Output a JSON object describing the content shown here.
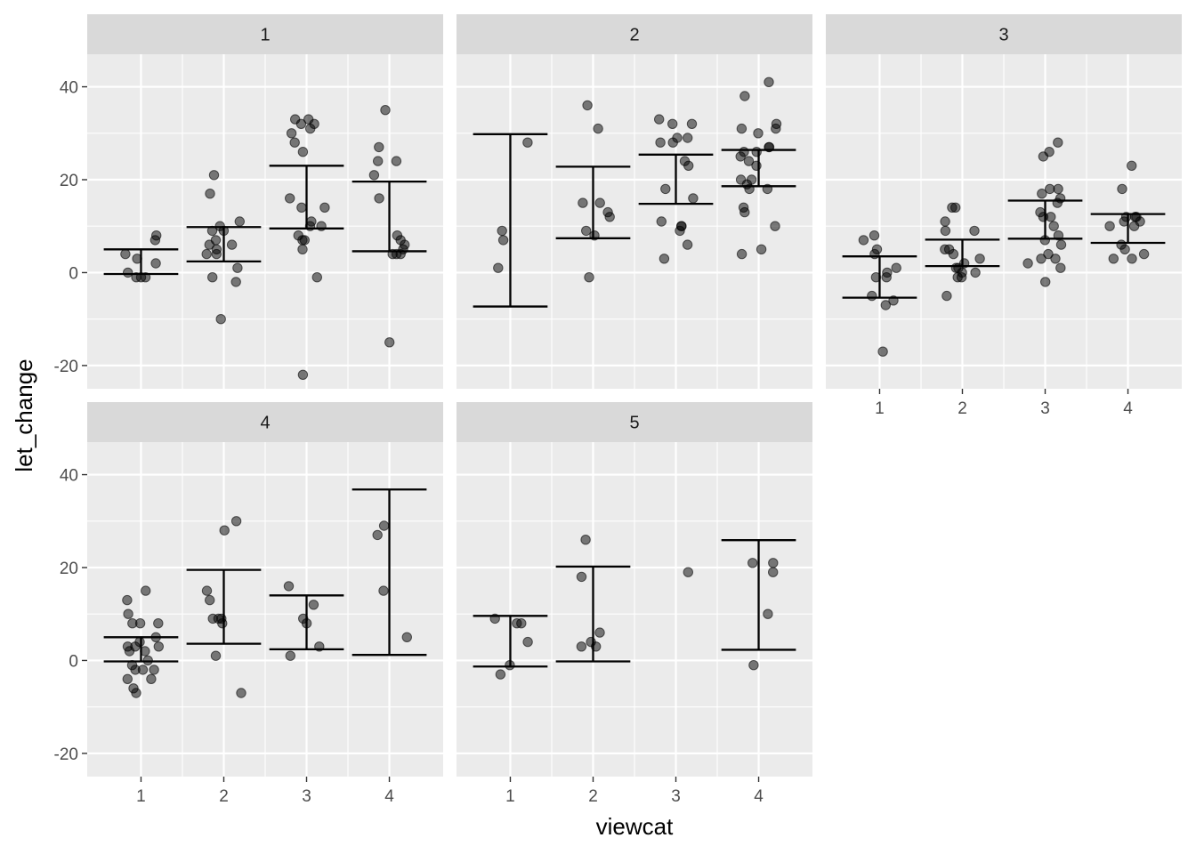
{
  "chart_data": {
    "type": "scatter",
    "xlabel": "viewcat",
    "ylabel": "let_change",
    "categories": [
      "1",
      "2",
      "3",
      "4"
    ],
    "ylim": [
      -25,
      47
    ],
    "yticks": [
      -20,
      0,
      20,
      40
    ],
    "grid": true,
    "facets": [
      {
        "label": "1",
        "points": [
          {
            "x": 1,
            "y": 7
          },
          {
            "x": 1,
            "y": 8
          },
          {
            "x": 1,
            "y": 4
          },
          {
            "x": 1,
            "y": 3
          },
          {
            "x": 1,
            "y": 2
          },
          {
            "x": 1,
            "y": 0
          },
          {
            "x": 1,
            "y": -1
          },
          {
            "x": 1,
            "y": -1
          },
          {
            "x": 1,
            "y": -1
          },
          {
            "x": 2,
            "y": 21
          },
          {
            "x": 2,
            "y": 17
          },
          {
            "x": 2,
            "y": 11
          },
          {
            "x": 2,
            "y": 10
          },
          {
            "x": 2,
            "y": 9
          },
          {
            "x": 2,
            "y": 9
          },
          {
            "x": 2,
            "y": 7
          },
          {
            "x": 2,
            "y": 6
          },
          {
            "x": 2,
            "y": 6
          },
          {
            "x": 2,
            "y": 5
          },
          {
            "x": 2,
            "y": 4
          },
          {
            "x": 2,
            "y": 4
          },
          {
            "x": 2,
            "y": 1
          },
          {
            "x": 2,
            "y": -1
          },
          {
            "x": 2,
            "y": -2
          },
          {
            "x": 2,
            "y": -10
          },
          {
            "x": 3,
            "y": 33
          },
          {
            "x": 3,
            "y": 33
          },
          {
            "x": 3,
            "y": 32
          },
          {
            "x": 3,
            "y": 32
          },
          {
            "x": 3,
            "y": 31
          },
          {
            "x": 3,
            "y": 30
          },
          {
            "x": 3,
            "y": 28
          },
          {
            "x": 3,
            "y": 26
          },
          {
            "x": 3,
            "y": 16
          },
          {
            "x": 3,
            "y": 14
          },
          {
            "x": 3,
            "y": 14
          },
          {
            "x": 3,
            "y": 11
          },
          {
            "x": 3,
            "y": 10
          },
          {
            "x": 3,
            "y": 10
          },
          {
            "x": 3,
            "y": 8
          },
          {
            "x": 3,
            "y": 7
          },
          {
            "x": 3,
            "y": 7
          },
          {
            "x": 3,
            "y": 5
          },
          {
            "x": 3,
            "y": -1
          },
          {
            "x": 3,
            "y": -22
          },
          {
            "x": 4,
            "y": 35
          },
          {
            "x": 4,
            "y": 27
          },
          {
            "x": 4,
            "y": 24
          },
          {
            "x": 4,
            "y": 24
          },
          {
            "x": 4,
            "y": 21
          },
          {
            "x": 4,
            "y": 16
          },
          {
            "x": 4,
            "y": 8
          },
          {
            "x": 4,
            "y": 7
          },
          {
            "x": 4,
            "y": 6
          },
          {
            "x": 4,
            "y": 5
          },
          {
            "x": 4,
            "y": 4
          },
          {
            "x": 4,
            "y": 4
          },
          {
            "x": 4,
            "y": 4
          },
          {
            "x": 4,
            "y": -15
          }
        ],
        "errorbars": [
          {
            "x": 1,
            "ymin": -0.3,
            "ymax": 5.0
          },
          {
            "x": 2,
            "ymin": 2.4,
            "ymax": 9.8
          },
          {
            "x": 3,
            "ymin": 9.5,
            "ymax": 23.0
          },
          {
            "x": 4,
            "ymin": 4.6,
            "ymax": 19.6
          }
        ]
      },
      {
        "label": "2",
        "points": [
          {
            "x": 1,
            "y": 28
          },
          {
            "x": 1,
            "y": 9
          },
          {
            "x": 1,
            "y": 7
          },
          {
            "x": 1,
            "y": 1
          },
          {
            "x": 2,
            "y": 36
          },
          {
            "x": 2,
            "y": 31
          },
          {
            "x": 2,
            "y": 15
          },
          {
            "x": 2,
            "y": 15
          },
          {
            "x": 2,
            "y": 13
          },
          {
            "x": 2,
            "y": 12
          },
          {
            "x": 2,
            "y": 9
          },
          {
            "x": 2,
            "y": 8
          },
          {
            "x": 2,
            "y": -1
          },
          {
            "x": 3,
            "y": 33
          },
          {
            "x": 3,
            "y": 32
          },
          {
            "x": 3,
            "y": 32
          },
          {
            "x": 3,
            "y": 29
          },
          {
            "x": 3,
            "y": 29
          },
          {
            "x": 3,
            "y": 28
          },
          {
            "x": 3,
            "y": 28
          },
          {
            "x": 3,
            "y": 24
          },
          {
            "x": 3,
            "y": 23
          },
          {
            "x": 3,
            "y": 18
          },
          {
            "x": 3,
            "y": 16
          },
          {
            "x": 3,
            "y": 11
          },
          {
            "x": 3,
            "y": 10
          },
          {
            "x": 3,
            "y": 10
          },
          {
            "x": 3,
            "y": 9
          },
          {
            "x": 3,
            "y": 6
          },
          {
            "x": 3,
            "y": 3
          },
          {
            "x": 4,
            "y": 41
          },
          {
            "x": 4,
            "y": 38
          },
          {
            "x": 4,
            "y": 32
          },
          {
            "x": 4,
            "y": 31
          },
          {
            "x": 4,
            "y": 31
          },
          {
            "x": 4,
            "y": 30
          },
          {
            "x": 4,
            "y": 27
          },
          {
            "x": 4,
            "y": 27
          },
          {
            "x": 4,
            "y": 26
          },
          {
            "x": 4,
            "y": 26
          },
          {
            "x": 4,
            "y": 25
          },
          {
            "x": 4,
            "y": 24
          },
          {
            "x": 4,
            "y": 23
          },
          {
            "x": 4,
            "y": 20
          },
          {
            "x": 4,
            "y": 20
          },
          {
            "x": 4,
            "y": 19
          },
          {
            "x": 4,
            "y": 18
          },
          {
            "x": 4,
            "y": 18
          },
          {
            "x": 4,
            "y": 14
          },
          {
            "x": 4,
            "y": 13
          },
          {
            "x": 4,
            "y": 10
          },
          {
            "x": 4,
            "y": 5
          },
          {
            "x": 4,
            "y": 4
          }
        ],
        "errorbars": [
          {
            "x": 1,
            "ymin": -7.3,
            "ymax": 29.8
          },
          {
            "x": 2,
            "ymin": 7.4,
            "ymax": 22.8
          },
          {
            "x": 3,
            "ymin": 14.8,
            "ymax": 25.4
          },
          {
            "x": 4,
            "ymin": 18.6,
            "ymax": 26.4
          }
        ]
      },
      {
        "label": "3",
        "points": [
          {
            "x": 1,
            "y": 8
          },
          {
            "x": 1,
            "y": 7
          },
          {
            "x": 1,
            "y": 5
          },
          {
            "x": 1,
            "y": 4
          },
          {
            "x": 1,
            "y": 1
          },
          {
            "x": 1,
            "y": 0
          },
          {
            "x": 1,
            "y": -1
          },
          {
            "x": 1,
            "y": -1
          },
          {
            "x": 1,
            "y": -5
          },
          {
            "x": 1,
            "y": -6
          },
          {
            "x": 1,
            "y": -7
          },
          {
            "x": 1,
            "y": -17
          },
          {
            "x": 2,
            "y": 14
          },
          {
            "x": 2,
            "y": 14
          },
          {
            "x": 2,
            "y": 11
          },
          {
            "x": 2,
            "y": 9
          },
          {
            "x": 2,
            "y": 9
          },
          {
            "x": 2,
            "y": 5
          },
          {
            "x": 2,
            "y": 5
          },
          {
            "x": 2,
            "y": 4
          },
          {
            "x": 2,
            "y": 3
          },
          {
            "x": 2,
            "y": 2
          },
          {
            "x": 2,
            "y": 1
          },
          {
            "x": 2,
            "y": 1
          },
          {
            "x": 2,
            "y": 0
          },
          {
            "x": 2,
            "y": 0
          },
          {
            "x": 2,
            "y": -1
          },
          {
            "x": 2,
            "y": -1
          },
          {
            "x": 2,
            "y": -5
          },
          {
            "x": 3,
            "y": 28
          },
          {
            "x": 3,
            "y": 26
          },
          {
            "x": 3,
            "y": 25
          },
          {
            "x": 3,
            "y": 18
          },
          {
            "x": 3,
            "y": 18
          },
          {
            "x": 3,
            "y": 17
          },
          {
            "x": 3,
            "y": 16
          },
          {
            "x": 3,
            "y": 15
          },
          {
            "x": 3,
            "y": 13
          },
          {
            "x": 3,
            "y": 12
          },
          {
            "x": 3,
            "y": 12
          },
          {
            "x": 3,
            "y": 10
          },
          {
            "x": 3,
            "y": 8
          },
          {
            "x": 3,
            "y": 7
          },
          {
            "x": 3,
            "y": 6
          },
          {
            "x": 3,
            "y": 4
          },
          {
            "x": 3,
            "y": 3
          },
          {
            "x": 3,
            "y": 3
          },
          {
            "x": 3,
            "y": 2
          },
          {
            "x": 3,
            "y": 1
          },
          {
            "x": 3,
            "y": -2
          },
          {
            "x": 4,
            "y": 23
          },
          {
            "x": 4,
            "y": 18
          },
          {
            "x": 4,
            "y": 12
          },
          {
            "x": 4,
            "y": 12
          },
          {
            "x": 4,
            "y": 12
          },
          {
            "x": 4,
            "y": 11
          },
          {
            "x": 4,
            "y": 11
          },
          {
            "x": 4,
            "y": 10
          },
          {
            "x": 4,
            "y": 10
          },
          {
            "x": 4,
            "y": 6
          },
          {
            "x": 4,
            "y": 5
          },
          {
            "x": 4,
            "y": 4
          },
          {
            "x": 4,
            "y": 3
          },
          {
            "x": 4,
            "y": 3
          }
        ],
        "errorbars": [
          {
            "x": 1,
            "ymin": -5.4,
            "ymax": 3.5
          },
          {
            "x": 2,
            "ymin": 1.4,
            "ymax": 7.1
          },
          {
            "x": 3,
            "ymin": 7.3,
            "ymax": 15.5
          },
          {
            "x": 4,
            "ymin": 6.4,
            "ymax": 12.6
          }
        ]
      },
      {
        "label": "4",
        "points": [
          {
            "x": 1,
            "y": 15
          },
          {
            "x": 1,
            "y": 13
          },
          {
            "x": 1,
            "y": 10
          },
          {
            "x": 1,
            "y": 8
          },
          {
            "x": 1,
            "y": 8
          },
          {
            "x": 1,
            "y": 8
          },
          {
            "x": 1,
            "y": 5
          },
          {
            "x": 1,
            "y": 4
          },
          {
            "x": 1,
            "y": 3
          },
          {
            "x": 1,
            "y": 3
          },
          {
            "x": 1,
            "y": 3
          },
          {
            "x": 1,
            "y": 2
          },
          {
            "x": 1,
            "y": 2
          },
          {
            "x": 1,
            "y": 0
          },
          {
            "x": 1,
            "y": -1
          },
          {
            "x": 1,
            "y": -2
          },
          {
            "x": 1,
            "y": -2
          },
          {
            "x": 1,
            "y": -2
          },
          {
            "x": 1,
            "y": -4
          },
          {
            "x": 1,
            "y": -4
          },
          {
            "x": 1,
            "y": -6
          },
          {
            "x": 1,
            "y": -7
          },
          {
            "x": 2,
            "y": 30
          },
          {
            "x": 2,
            "y": 28
          },
          {
            "x": 2,
            "y": 15
          },
          {
            "x": 2,
            "y": 13
          },
          {
            "x": 2,
            "y": 9
          },
          {
            "x": 2,
            "y": 9
          },
          {
            "x": 2,
            "y": 9
          },
          {
            "x": 2,
            "y": 8
          },
          {
            "x": 2,
            "y": 1
          },
          {
            "x": 2,
            "y": -7
          },
          {
            "x": 3,
            "y": 16
          },
          {
            "x": 3,
            "y": 12
          },
          {
            "x": 3,
            "y": 9
          },
          {
            "x": 3,
            "y": 8
          },
          {
            "x": 3,
            "y": 3
          },
          {
            "x": 3,
            "y": 1
          },
          {
            "x": 4,
            "y": 29
          },
          {
            "x": 4,
            "y": 27
          },
          {
            "x": 4,
            "y": 15
          },
          {
            "x": 4,
            "y": 5
          }
        ],
        "errorbars": [
          {
            "x": 1,
            "ymin": -0.2,
            "ymax": 5.0
          },
          {
            "x": 2,
            "ymin": 3.6,
            "ymax": 19.5
          },
          {
            "x": 3,
            "ymin": 2.4,
            "ymax": 14.0
          },
          {
            "x": 4,
            "ymin": 1.2,
            "ymax": 36.8
          }
        ]
      },
      {
        "label": "5",
        "points": [
          {
            "x": 1,
            "y": 9
          },
          {
            "x": 1,
            "y": 8
          },
          {
            "x": 1,
            "y": 8
          },
          {
            "x": 1,
            "y": 4
          },
          {
            "x": 1,
            "y": -1
          },
          {
            "x": 1,
            "y": -3
          },
          {
            "x": 2,
            "y": 26
          },
          {
            "x": 2,
            "y": 18
          },
          {
            "x": 2,
            "y": 6
          },
          {
            "x": 2,
            "y": 4
          },
          {
            "x": 2,
            "y": 3
          },
          {
            "x": 2,
            "y": 3
          },
          {
            "x": 3,
            "y": 19
          },
          {
            "x": 4,
            "y": 21
          },
          {
            "x": 4,
            "y": 21
          },
          {
            "x": 4,
            "y": 19
          },
          {
            "x": 4,
            "y": 10
          },
          {
            "x": 4,
            "y": -1
          }
        ],
        "errorbars": [
          {
            "x": 1,
            "ymin": -1.3,
            "ymax": 9.6
          },
          {
            "x": 2,
            "ymin": -0.2,
            "ymax": 20.2
          },
          {
            "x": 4,
            "ymin": 2.3,
            "ymax": 25.9
          }
        ]
      }
    ]
  }
}
